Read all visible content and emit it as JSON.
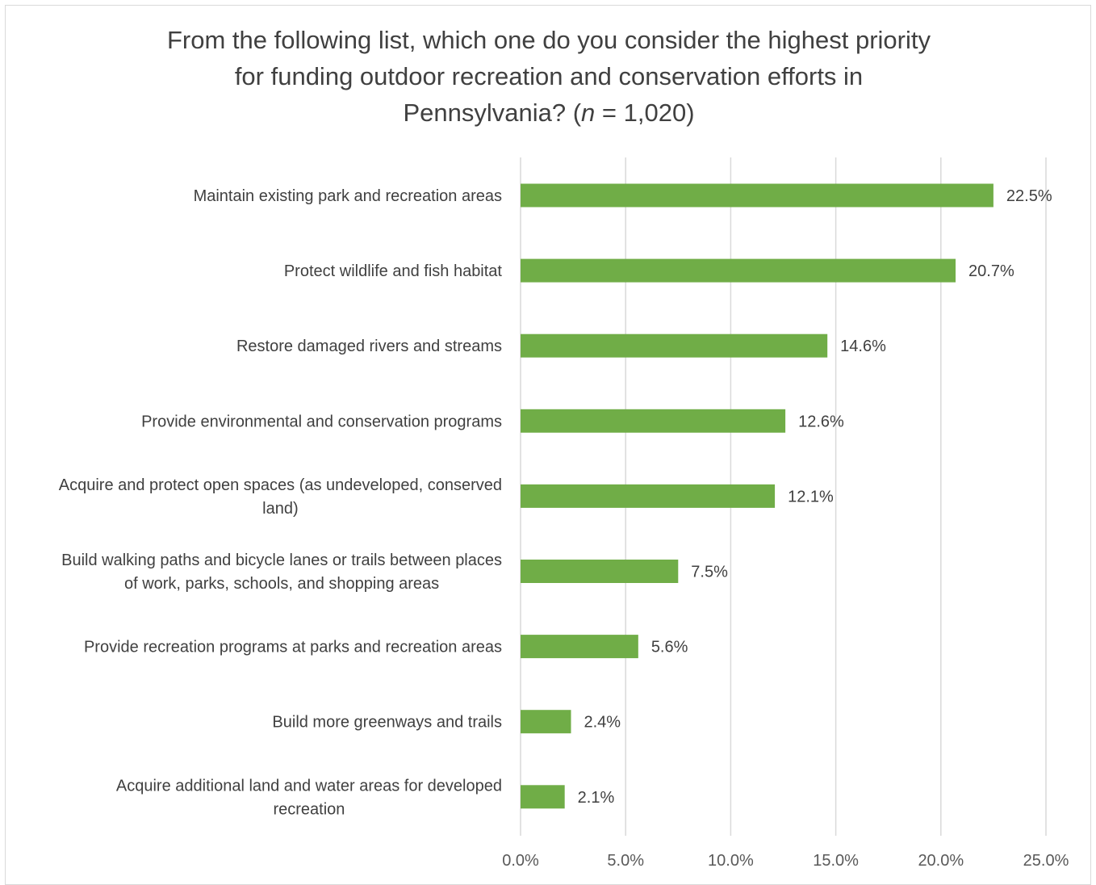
{
  "chart_data": {
    "type": "bar",
    "orientation": "horizontal",
    "title": {
      "lines": [
        "From the following list, which one do you consider the highest priority",
        "for funding outdoor recreation and conservation efforts in"
      ],
      "last_line_prefix": "Pennsylvania? (",
      "last_line_italic": "n",
      "last_line_suffix": " = 1,020)"
    },
    "categories": [
      "Maintain existing park and recreation areas",
      "Protect wildlife and fish habitat",
      "Restore damaged rivers and streams",
      "Provide environmental and conservation programs",
      "Acquire and protect open spaces (as undeveloped, conserved land)",
      "Build walking paths and bicycle lanes or trails between places of work, parks, schools, and shopping areas",
      "Provide recreation programs at parks and recreation areas",
      "Build more greenways and trails",
      "Acquire additional land and water areas for developed recreation"
    ],
    "category_label_lines": [
      [
        "Maintain existing park and recreation areas"
      ],
      [
        "Protect wildlife and fish habitat"
      ],
      [
        "Restore damaged rivers and streams"
      ],
      [
        "Provide environmental and conservation programs"
      ],
      [
        "Acquire and protect open spaces (as undeveloped, conserved",
        "land)"
      ],
      [
        "Build walking paths and bicycle lanes or trails between places",
        "of work, parks, schools, and shopping areas"
      ],
      [
        "Provide recreation programs at parks and recreation areas"
      ],
      [
        "Build more greenways and trails"
      ],
      [
        "Acquire additional land and water areas for developed",
        "recreation"
      ]
    ],
    "values": [
      22.5,
      20.7,
      14.6,
      12.6,
      12.1,
      7.5,
      5.6,
      2.4,
      2.1
    ],
    "value_labels": [
      "22.5%",
      "20.7%",
      "14.6%",
      "12.6%",
      "12.1%",
      "7.5%",
      "5.6%",
      "2.4%",
      "2.1%"
    ],
    "xlim": [
      0,
      25
    ],
    "xticks": [
      0,
      5,
      10,
      15,
      20,
      25
    ],
    "xtick_labels": [
      "0.0%",
      "5.0%",
      "10.0%",
      "15.0%",
      "20.0%",
      "25.0%"
    ],
    "xlabel": "",
    "ylabel": "",
    "grid": "vertical",
    "legend": "none",
    "colors": {
      "bar": "#70ad47",
      "grid": "#d9d9d9",
      "text": "#404040",
      "tick_text": "#595959"
    }
  }
}
